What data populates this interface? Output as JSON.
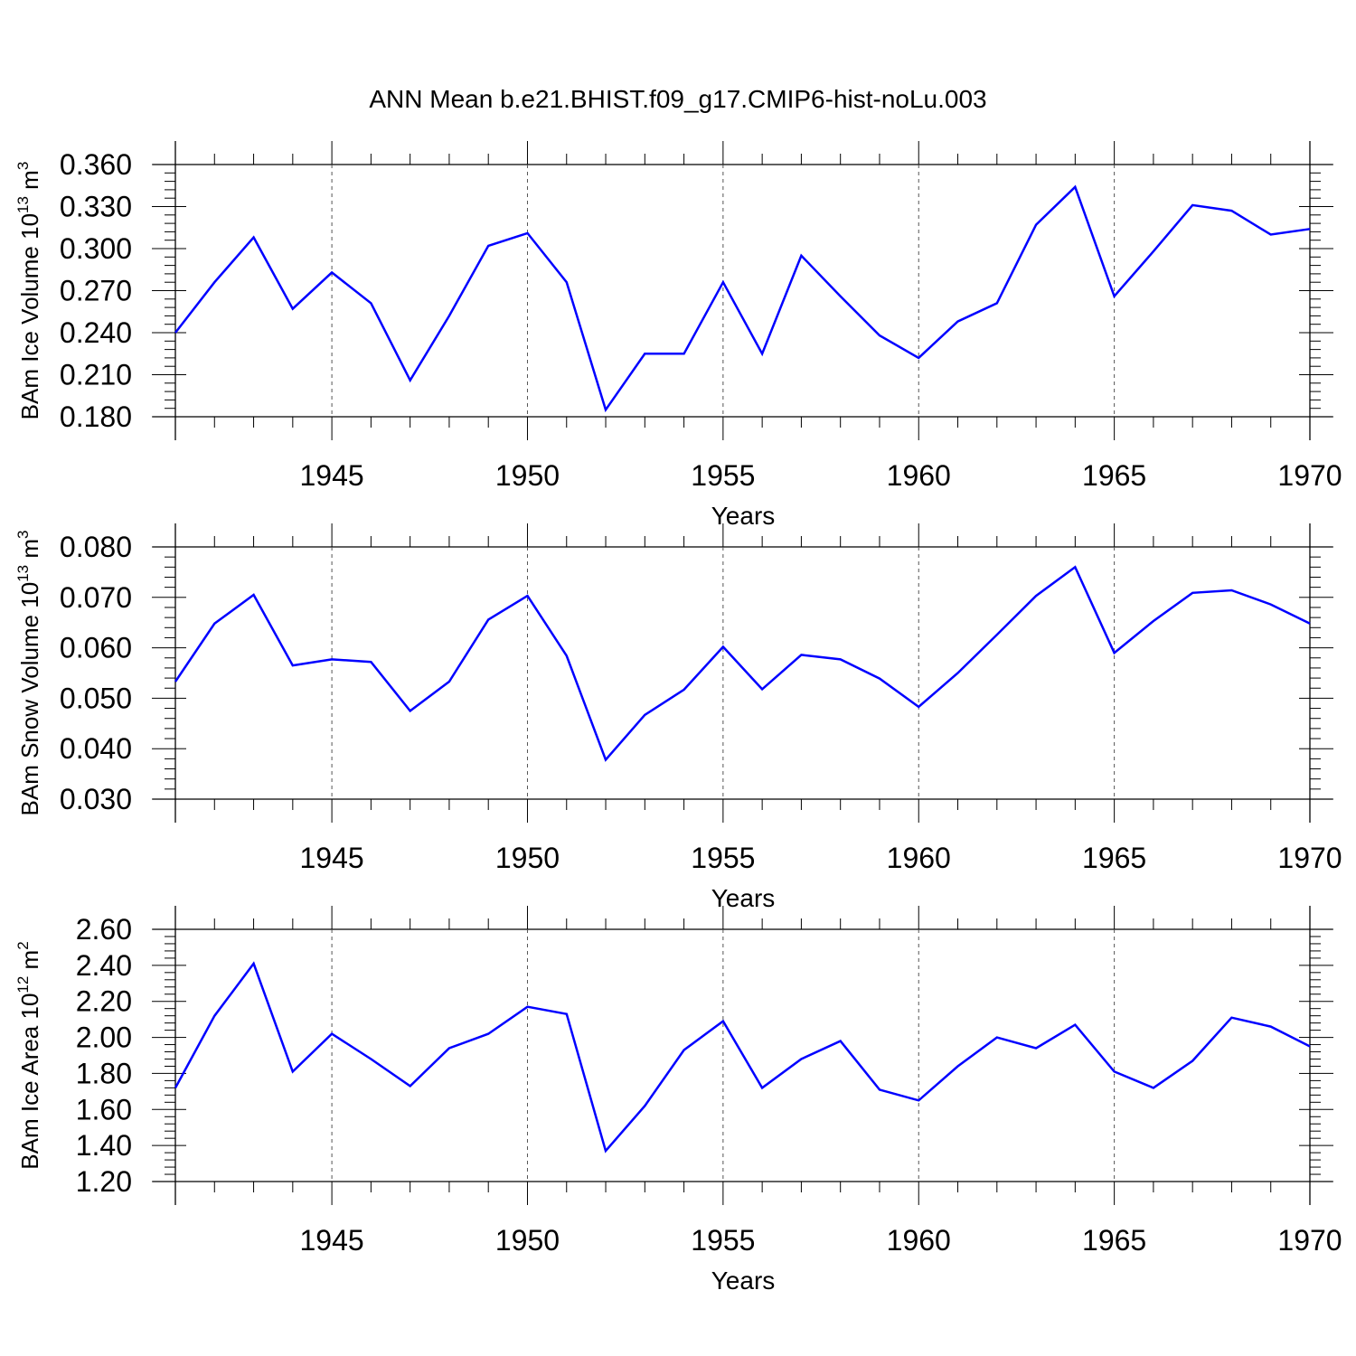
{
  "title": "ANN Mean b.e21.BHIST.f09_g17.CMIP6-hist-noLu.003",
  "colors": {
    "series": "#0000ff",
    "axis": "#000000",
    "grid": "#555555"
  },
  "chart_data": [
    {
      "type": "line",
      "ylabel": {
        "text": "BAm Ice Volume 10",
        "sup1": "13",
        "unit": " m",
        "sup2": "3"
      },
      "xlabel": "Years",
      "xlim": [
        1941,
        1970
      ],
      "ylim": [
        0.18,
        0.36
      ],
      "xticks": [
        1945,
        1950,
        1955,
        1960,
        1965,
        1970
      ],
      "yticks": [
        "0.180",
        "0.210",
        "0.240",
        "0.270",
        "0.300",
        "0.330",
        "0.360"
      ],
      "grid": "x dashed",
      "x": [
        1941,
        1942,
        1943,
        1944,
        1945,
        1946,
        1947,
        1948,
        1949,
        1950,
        1951,
        1952,
        1953,
        1954,
        1955,
        1956,
        1957,
        1958,
        1959,
        1960,
        1961,
        1962,
        1963,
        1964,
        1965,
        1966,
        1967,
        1968,
        1969,
        1970
      ],
      "values": [
        0.24,
        0.276,
        0.308,
        0.257,
        0.283,
        0.261,
        0.206,
        0.252,
        0.302,
        0.311,
        0.276,
        0.185,
        0.225,
        0.225,
        0.276,
        0.225,
        0.295,
        0.266,
        0.238,
        0.222,
        0.248,
        0.261,
        0.317,
        0.344,
        0.266,
        0.298,
        0.331,
        0.327,
        0.31,
        0.314
      ]
    },
    {
      "type": "line",
      "ylabel": {
        "text": "BAm Snow Volume 10",
        "sup1": "13",
        "unit": " m",
        "sup2": "3"
      },
      "xlabel": "Years",
      "xlim": [
        1941,
        1970
      ],
      "ylim": [
        0.03,
        0.08
      ],
      "xticks": [
        1945,
        1950,
        1955,
        1960,
        1965,
        1970
      ],
      "yticks": [
        "0.030",
        "0.040",
        "0.050",
        "0.060",
        "0.070",
        "0.080"
      ],
      "grid": "x dashed",
      "x": [
        1941,
        1942,
        1943,
        1944,
        1945,
        1946,
        1947,
        1948,
        1949,
        1950,
        1951,
        1952,
        1953,
        1954,
        1955,
        1956,
        1957,
        1958,
        1959,
        1960,
        1961,
        1962,
        1963,
        1964,
        1965,
        1966,
        1967,
        1968,
        1969,
        1970
      ],
      "values": [
        0.0533,
        0.0648,
        0.0705,
        0.0565,
        0.0577,
        0.0572,
        0.0475,
        0.0533,
        0.0656,
        0.0703,
        0.0584,
        0.0378,
        0.0467,
        0.0517,
        0.0602,
        0.0518,
        0.0586,
        0.0577,
        0.0539,
        0.0483,
        0.055,
        0.0626,
        0.0703,
        0.076,
        0.059,
        0.0653,
        0.0709,
        0.0714,
        0.0686,
        0.0648
      ]
    },
    {
      "type": "line",
      "ylabel": {
        "text": "BAm Ice Area 10",
        "sup1": "12",
        "unit": " m",
        "sup2": "2"
      },
      "xlabel": "Years",
      "xlim": [
        1941,
        1970
      ],
      "ylim": [
        1.2,
        2.6
      ],
      "xticks": [
        1945,
        1950,
        1955,
        1960,
        1965,
        1970
      ],
      "yticks": [
        "1.20",
        "1.40",
        "1.60",
        "1.80",
        "2.00",
        "2.20",
        "2.40",
        "2.60"
      ],
      "grid": "x dashed",
      "x": [
        1941,
        1942,
        1943,
        1944,
        1945,
        1946,
        1947,
        1948,
        1949,
        1950,
        1951,
        1952,
        1953,
        1954,
        1955,
        1956,
        1957,
        1958,
        1959,
        1960,
        1961,
        1962,
        1963,
        1964,
        1965,
        1966,
        1967,
        1968,
        1969,
        1970
      ],
      "values": [
        1.72,
        2.12,
        2.41,
        1.81,
        2.02,
        1.88,
        1.73,
        1.94,
        2.02,
        2.17,
        2.13,
        1.37,
        1.62,
        1.93,
        2.09,
        1.72,
        1.88,
        1.98,
        1.71,
        1.65,
        1.84,
        2.0,
        1.94,
        2.07,
        1.81,
        1.72,
        1.87,
        2.11,
        2.06,
        1.95
      ]
    }
  ]
}
